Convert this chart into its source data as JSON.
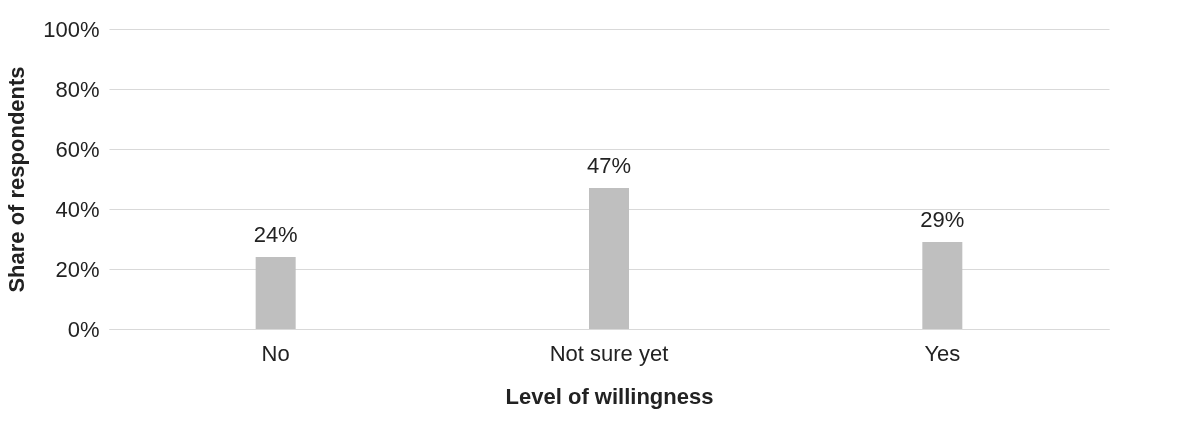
{
  "chart_data": {
    "type": "bar",
    "xlabel": "Level of willingness",
    "ylabel": "Share of respondents",
    "categories": [
      "No",
      "Not sure yet",
      "Yes"
    ],
    "values": [
      24,
      47,
      29
    ],
    "color": "#bfbfbf",
    "data_labels": true,
    "value_labels": [
      "24%",
      "47%",
      "29%"
    ],
    "ylim": [
      0,
      100
    ],
    "yticks": [
      {
        "value": 0,
        "label": "0%"
      },
      {
        "value": 20,
        "label": "20%"
      },
      {
        "value": 40,
        "label": "40%"
      },
      {
        "value": 60,
        "label": "60%"
      },
      {
        "value": 80,
        "label": "80%"
      },
      {
        "value": 100,
        "label": "100%"
      }
    ],
    "grid": "y"
  }
}
